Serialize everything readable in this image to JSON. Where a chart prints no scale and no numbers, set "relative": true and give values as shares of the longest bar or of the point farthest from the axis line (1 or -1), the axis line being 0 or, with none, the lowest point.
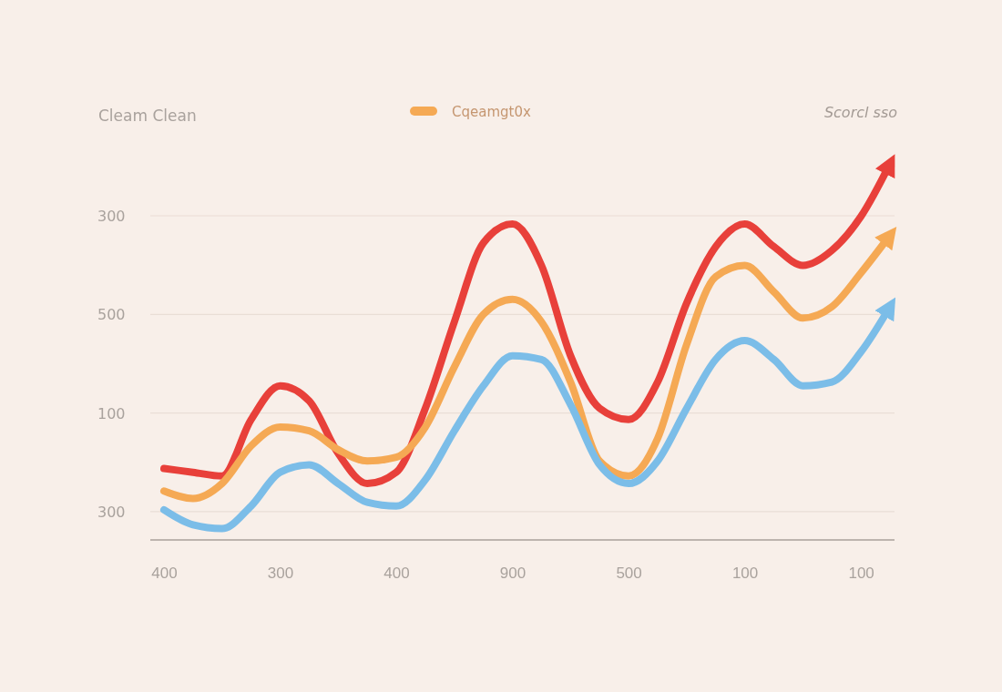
{
  "chart_data": {
    "type": "line",
    "title": "Cleam Clean",
    "relative": true,
    "annotations": [
      "Scorcl sso",
      "300",
      "500",
      "100",
      "300"
    ],
    "categories": [
      "400",
      null,
      null,
      null,
      "300",
      null,
      null,
      null,
      "400",
      null,
      null,
      null,
      "900",
      null,
      null,
      null,
      "500",
      null,
      null,
      null,
      "100",
      null,
      null,
      null,
      "100",
      null
    ],
    "grid": "y",
    "legend": "top",
    "marker": "none",
    "line_style": "solid",
    "series": [
      {
        "color": "#e8403a",
        "values": [
          0.19,
          0.18,
          0.17,
          0.32,
          0.41,
          0.37,
          0.23,
          0.15,
          0.18,
          0.35,
          0.58,
          0.79,
          0.84,
          0.73,
          0.49,
          0.35,
          0.32,
          0.42,
          0.63,
          0.78,
          0.84,
          0.78,
          0.73,
          0.77,
          0.86,
          1
        ]
      },
      {
        "name": "Cqeamgt0x",
        "color": "#f5a954",
        "values": [
          0.13,
          0.11,
          0.15,
          0.25,
          0.3,
          0.29,
          0.24,
          0.21,
          0.22,
          0.3,
          0.46,
          0.6,
          0.64,
          0.58,
          0.42,
          0.21,
          0.17,
          0.27,
          0.52,
          0.7,
          0.73,
          0.66,
          0.59,
          0.62,
          0.71,
          0.81
        ]
      },
      {
        "color": "#7bbde8",
        "values": [
          0.08,
          0.04,
          0.03,
          0.09,
          0.18,
          0.2,
          0.15,
          0.1,
          0.09,
          0.16,
          0.29,
          0.41,
          0.49,
          0.48,
          0.36,
          0.2,
          0.15,
          0.21,
          0.35,
          0.48,
          0.53,
          0.48,
          0.41,
          0.42,
          0.5,
          0.62
        ]
      }
    ]
  }
}
